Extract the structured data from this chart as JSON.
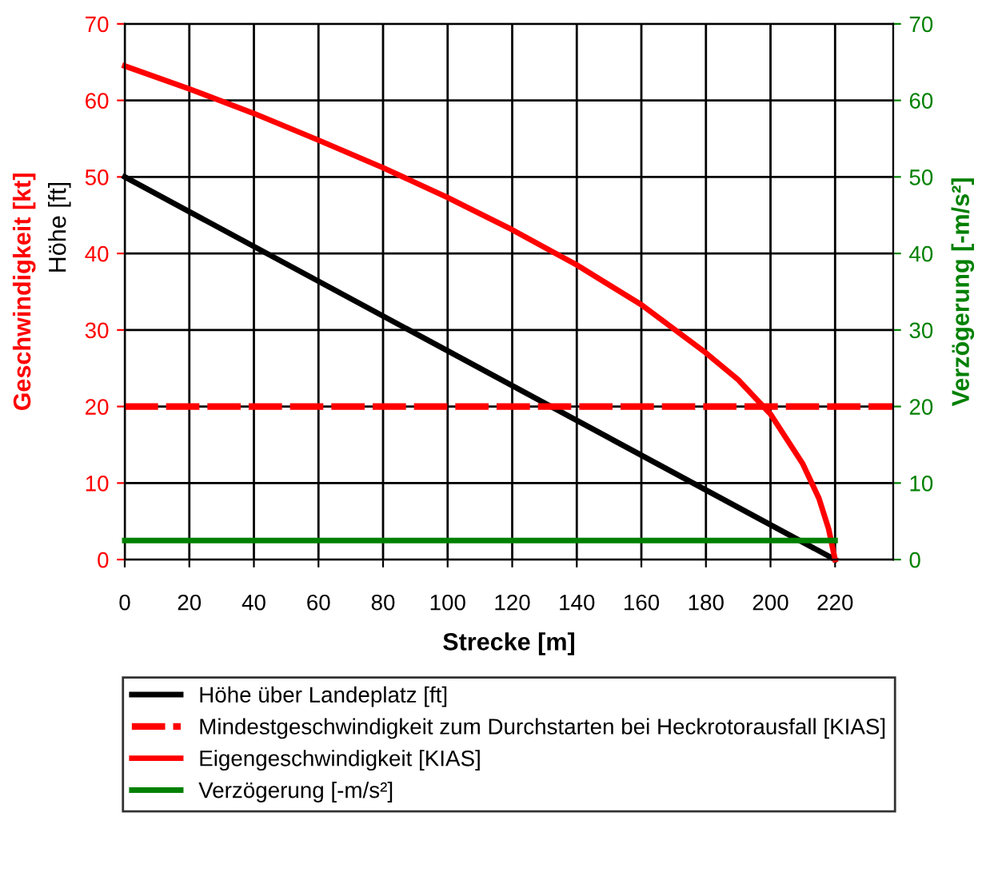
{
  "chart_data": {
    "type": "line",
    "xlabel": "Strecke [m]",
    "ylabel": "Geschwindigkeit [kt]",
    "y2label": "Verzögerung [-m/s²]",
    "annotations": [
      "Höhe [ft]"
    ],
    "xlim": [
      0,
      238
    ],
    "xticks": [
      0,
      20,
      40,
      60,
      80,
      100,
      120,
      140,
      160,
      180,
      200,
      220
    ],
    "ylim": [
      0,
      70
    ],
    "yticks": [
      0,
      10,
      20,
      30,
      40,
      50,
      60,
      70
    ],
    "y2lim": [
      0,
      70
    ],
    "y2ticks": [
      0,
      10,
      20,
      30,
      40,
      50,
      60,
      70
    ],
    "grid": true,
    "legend": "bottom",
    "series": [
      {
        "name": "Höhe über Landeplatz [ft]",
        "color": "#000000",
        "x": [
          0,
          220
        ],
        "values": [
          50,
          0
        ]
      },
      {
        "name": "Mindestgeschwindigkeit zum Durchstarten bei Heckrotorausfall [KIAS]",
        "color": "#ff0000",
        "line_style": "dashed",
        "x": [
          0,
          238
        ],
        "values": [
          20,
          20
        ]
      },
      {
        "name": "Eigengeschwindigkeit [KIAS]",
        "color": "#ff0000",
        "x": [
          0,
          20,
          40,
          60,
          80,
          100,
          120,
          140,
          160,
          180,
          190,
          200,
          210,
          215,
          218,
          220
        ],
        "values": [
          64.5,
          61.5,
          58.3,
          54.8,
          51.2,
          47.3,
          43.1,
          38.5,
          33.3,
          27,
          23.5,
          19,
          12.5,
          8,
          4,
          0
        ]
      },
      {
        "name": "Verzögerung [-m/s²]",
        "color": "#008000",
        "axis": "y2",
        "x": [
          0,
          220
        ],
        "values": [
          2.5,
          2.5
        ]
      }
    ]
  }
}
